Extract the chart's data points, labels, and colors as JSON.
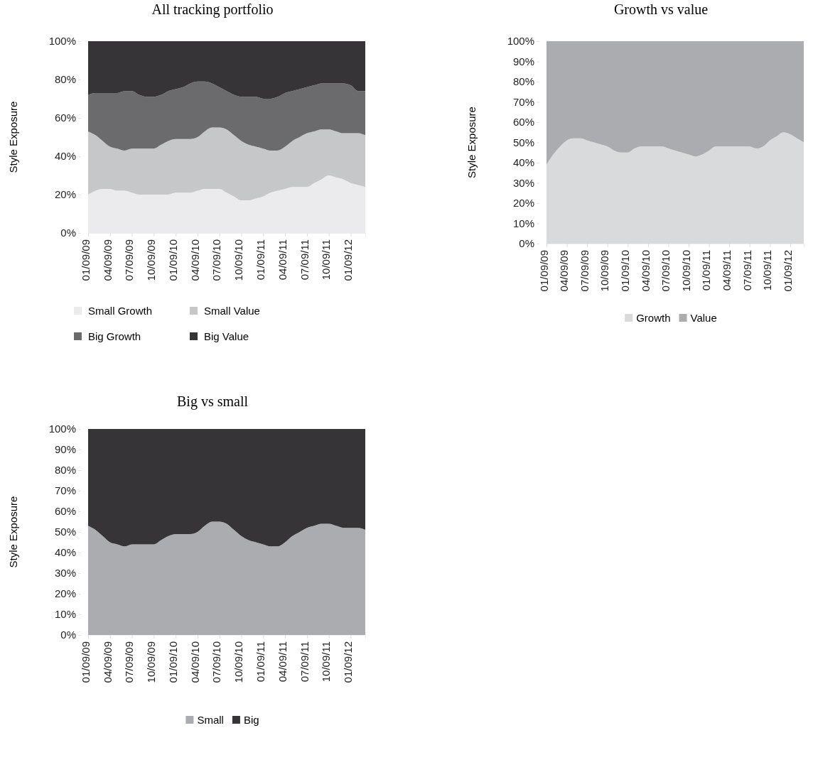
{
  "chart_data": [
    {
      "type": "area",
      "stacked": true,
      "title": "All tracking portfolio",
      "ylabel": "Style Exposure",
      "legend": "bottom",
      "categories": [
        "01/09/09",
        null,
        null,
        "04/09/09",
        null,
        null,
        "07/09/09",
        null,
        null,
        "10/09/09",
        null,
        null,
        "01/09/10",
        null,
        null,
        "04/09/10",
        null,
        null,
        "07/09/10",
        null,
        null,
        "10/09/10",
        null,
        null,
        "01/09/11",
        null,
        null,
        "04/09/11",
        null,
        null,
        "07/09/11",
        null,
        null,
        "10/09/11",
        null,
        null,
        "01/09/12",
        null,
        null
      ],
      "ylim": [
        0,
        100
      ],
      "yticks": [
        {
          "value": 0,
          "label": "0%"
        },
        {
          "value": 20,
          "label": "20%"
        },
        {
          "value": 40,
          "label": "40%"
        },
        {
          "value": 60,
          "label": "60%"
        },
        {
          "value": 80,
          "label": "80%"
        },
        {
          "value": 100,
          "label": "100%"
        }
      ],
      "series": [
        {
          "name": "Small Growth",
          "color": "#ebebed",
          "values": [
            20,
            22,
            23,
            23,
            22,
            22,
            21,
            20,
            20,
            20,
            20,
            20,
            21,
            21,
            21,
            22,
            23,
            23,
            23,
            21,
            19,
            17,
            17,
            18,
            19,
            21,
            22,
            23,
            24,
            24,
            24,
            26,
            28,
            30,
            29,
            28,
            26,
            25,
            24
          ]
        },
        {
          "name": "Small Value",
          "color": "#c6c7c9",
          "values": [
            33,
            29,
            25,
            22,
            22,
            21,
            23,
            24,
            24,
            24,
            26,
            28,
            28,
            28,
            28,
            28,
            30,
            32,
            32,
            33,
            32,
            31,
            29,
            27,
            25,
            22,
            21,
            22,
            24,
            26,
            28,
            27,
            26,
            24,
            24,
            24,
            26,
            27,
            27
          ]
        },
        {
          "name": "Big Growth",
          "color": "#6b6b6d",
          "values": [
            19,
            22,
            25,
            28,
            29,
            31,
            30,
            28,
            27,
            27,
            26,
            26,
            26,
            27,
            29,
            29,
            26,
            23,
            21,
            20,
            21,
            23,
            25,
            26,
            26,
            27,
            28,
            28,
            26,
            25,
            24,
            24,
            24,
            24,
            25,
            26,
            25,
            22,
            23
          ]
        },
        {
          "name": "Big Value",
          "color": "#363436",
          "values": [
            28,
            27,
            27,
            27,
            27,
            26,
            26,
            28,
            29,
            29,
            28,
            26,
            25,
            24,
            22,
            21,
            21,
            22,
            24,
            26,
            28,
            29,
            29,
            29,
            30,
            30,
            29,
            27,
            26,
            25,
            24,
            23,
            22,
            22,
            22,
            22,
            23,
            26,
            26
          ]
        }
      ]
    },
    {
      "type": "area",
      "stacked": true,
      "title": "Growth vs value",
      "ylabel": "Style Exposure",
      "legend": "bottom",
      "categories": [
        "01/09/09",
        null,
        null,
        "04/09/09",
        null,
        null,
        "07/09/09",
        null,
        null,
        "10/09/09",
        null,
        null,
        "01/09/10",
        null,
        null,
        "04/09/10",
        null,
        null,
        "07/09/10",
        null,
        null,
        "10/09/10",
        null,
        null,
        "01/09/11",
        null,
        null,
        "04/09/11",
        null,
        null,
        "07/09/11",
        null,
        null,
        "10/09/11",
        null,
        null,
        "01/09/12",
        null,
        null
      ],
      "ylim": [
        0,
        100
      ],
      "yticks": [
        {
          "value": 0,
          "label": "0%"
        },
        {
          "value": 10,
          "label": "10%"
        },
        {
          "value": 20,
          "label": "20%"
        },
        {
          "value": 30,
          "label": "30%"
        },
        {
          "value": 40,
          "label": "40%"
        },
        {
          "value": 50,
          "label": "50%"
        },
        {
          "value": 60,
          "label": "60%"
        },
        {
          "value": 70,
          "label": "70%"
        },
        {
          "value": 80,
          "label": "80%"
        },
        {
          "value": 90,
          "label": "90%"
        },
        {
          "value": 100,
          "label": "100%"
        }
      ],
      "series": [
        {
          "name": "Growth",
          "color": "#d9dadc",
          "values": [
            39,
            44,
            48,
            51,
            52,
            52,
            51,
            50,
            49,
            48,
            46,
            45,
            45,
            47,
            48,
            48,
            48,
            48,
            47,
            46,
            45,
            44,
            43,
            44,
            46,
            48,
            48,
            48,
            48,
            48,
            48,
            47,
            48,
            51,
            53,
            55,
            54,
            52,
            50
          ]
        },
        {
          "name": "Value",
          "color": "#abacaf",
          "values": [
            61,
            56,
            52,
            49,
            48,
            48,
            49,
            50,
            51,
            52,
            54,
            55,
            55,
            53,
            52,
            52,
            52,
            52,
            53,
            54,
            55,
            56,
            57,
            56,
            54,
            52,
            52,
            52,
            52,
            52,
            52,
            53,
            52,
            49,
            47,
            45,
            46,
            48,
            50
          ]
        }
      ]
    },
    {
      "type": "area",
      "stacked": true,
      "title": "Big vs small",
      "ylabel": "Style Exposure",
      "legend": "bottom",
      "categories": [
        "01/09/09",
        null,
        null,
        "04/09/09",
        null,
        null,
        "07/09/09",
        null,
        null,
        "10/09/09",
        null,
        null,
        "01/09/10",
        null,
        null,
        "04/09/10",
        null,
        null,
        "07/09/10",
        null,
        null,
        "10/09/10",
        null,
        null,
        "01/09/11",
        null,
        null,
        "04/09/11",
        null,
        null,
        "07/09/11",
        null,
        null,
        "10/09/11",
        null,
        null,
        "01/09/12",
        null,
        null
      ],
      "ylim": [
        0,
        100
      ],
      "yticks": [
        {
          "value": 0,
          "label": "0%"
        },
        {
          "value": 10,
          "label": "10%"
        },
        {
          "value": 20,
          "label": "20%"
        },
        {
          "value": 30,
          "label": "30%"
        },
        {
          "value": 40,
          "label": "40%"
        },
        {
          "value": 50,
          "label": "50%"
        },
        {
          "value": 60,
          "label": "60%"
        },
        {
          "value": 70,
          "label": "70%"
        },
        {
          "value": 80,
          "label": "80%"
        },
        {
          "value": 90,
          "label": "90%"
        },
        {
          "value": 100,
          "label": "100%"
        }
      ],
      "series": [
        {
          "name": "Small",
          "color": "#abacb0",
          "values": [
            53,
            51,
            48,
            45,
            44,
            43,
            44,
            44,
            44,
            44,
            46,
            48,
            49,
            49,
            49,
            50,
            53,
            55,
            55,
            54,
            51,
            48,
            46,
            45,
            44,
            43,
            43,
            45,
            48,
            50,
            52,
            53,
            54,
            54,
            53,
            52,
            52,
            52,
            51
          ]
        },
        {
          "name": "Big",
          "color": "#363436",
          "values": [
            47,
            49,
            52,
            55,
            56,
            57,
            56,
            56,
            56,
            56,
            54,
            52,
            51,
            51,
            51,
            50,
            47,
            45,
            45,
            46,
            49,
            52,
            54,
            55,
            56,
            57,
            57,
            55,
            52,
            50,
            48,
            47,
            46,
            46,
            47,
            48,
            48,
            48,
            49
          ]
        }
      ]
    }
  ]
}
